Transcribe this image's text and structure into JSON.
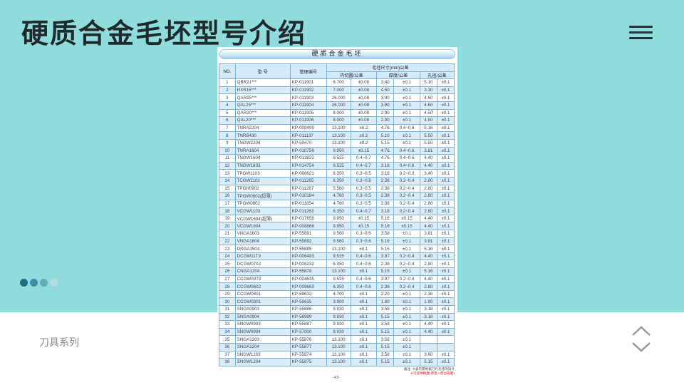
{
  "title": "硬质合金毛坯型号介绍",
  "footer_label": "刀具系列",
  "dot_colors": [
    "#1b6f86",
    "#3f8ea0",
    "#6aaab5",
    "#b3dcdf"
  ],
  "document": {
    "banner": "硬质合金毛坯",
    "headers": {
      "no": "NO.",
      "model": "型 号",
      "code": "管理编号",
      "size": "毛坯尺寸(mm)公差",
      "inscribed": "内切圆/公差",
      "thickness": "厚度/公差",
      "hole": "孔径/公差"
    },
    "rows": [
      [
        "1",
        "QBR21***",
        "KP-011901",
        "8.700",
        "±0.08",
        "3.40",
        "±0.1",
        "5.10",
        "±0.1"
      ],
      [
        "2",
        "HXR15***",
        "KP-011902",
        "7.000",
        "±0.08",
        "4.50",
        "±0.1",
        "3.30",
        "±0.1"
      ],
      [
        "3",
        "QAR25***",
        "KP-011903",
        "26.000",
        "±0.08",
        "3.90",
        "±0.1",
        "4.60",
        "±0.1"
      ],
      [
        "4",
        "QAL25***",
        "KP-011904",
        "26.000",
        "±0.08",
        "3.90",
        "±0.1",
        "4.60",
        "±0.1"
      ],
      [
        "5",
        "QAR20***",
        "KP-011905",
        "8.000",
        "±0.08",
        "2.90",
        "±0.1",
        "4.50",
        "±0.1"
      ],
      [
        "6",
        "QAL20***",
        "KP-011906",
        "8.000",
        "±0.08",
        "2.90",
        "±0.1",
        "4.50",
        "±0.1"
      ],
      [
        "7",
        "TNRA2204",
        "KP-008499",
        "13.100",
        "±0.2",
        "4.76",
        "0.4~0.6",
        "5.16",
        "±0.1"
      ],
      [
        "8",
        "TNRB430",
        "KP-011137",
        "13.100",
        "±0.2",
        "5.10",
        "±0.1",
        "5.50",
        "±0.1"
      ],
      [
        "9",
        "TNGW2204",
        "KP-59470",
        "13.100",
        "±0.2",
        "5.15",
        "±0.1",
        "5.50",
        "±0.1"
      ],
      [
        "10",
        "TNRA1604",
        "KP-010756",
        "9.950",
        "±0.15",
        "4.76",
        "0.4~0.6",
        "3.81",
        "±0.1"
      ],
      [
        "11",
        "TNGW1604",
        "KP-013822",
        "9.525",
        "0.4~0.7",
        "4.76",
        "0.4~0.6",
        "4.40",
        "±0.1"
      ],
      [
        "12",
        "TNGW1603",
        "KP-014754",
        "9.525",
        "0.4~0.7",
        "3.18",
        "0.4~0.6",
        "4.40",
        "±0.1"
      ],
      [
        "13",
        "TPGW1103",
        "KP-006621",
        "6.350",
        "0.3~0.5",
        "3.18",
        "0.2~0.3",
        "3.40",
        "±0.1"
      ],
      [
        "14",
        "TCGW1102",
        "KP-011265",
        "6.350",
        "0.3~0.6",
        "2.38",
        "0.2~0.4",
        "2.80",
        "±0.1"
      ],
      [
        "15",
        "TPGH0902",
        "KP-011267",
        "5.560",
        "0.3~0.5",
        "2.38",
        "0.2~0.4",
        "2.80",
        "±0.1"
      ],
      [
        "16",
        "TPGW0802(超薄)",
        "KP-010184",
        "4.760",
        "0.3~0.5",
        "2.38",
        "0.2~0.4",
        "2.80",
        "±0.1"
      ],
      [
        "17",
        "TPGW0802",
        "KP-011854",
        "4.760",
        "0.3~0.5",
        "2.38",
        "0.2~0.4",
        "2.80",
        "±0.1"
      ],
      [
        "18",
        "VCGW1103",
        "KP-011263",
        "6.350",
        "0.4~0.7",
        "3.18",
        "0.2~0.4",
        "2.80",
        "±0.1"
      ],
      [
        "19",
        "VCGW1604(超薄)",
        "KP-017658",
        "9.950",
        "±0.15",
        "5.16",
        "±0.15",
        "4.40",
        "±0.1"
      ],
      [
        "20",
        "VCGW1604",
        "KP-008866",
        "9.950",
        "±0.15",
        "5.16",
        "±0.15",
        "4.40",
        "±0.1"
      ],
      [
        "21",
        "VNGA1603",
        "KP-55891",
        "9.560",
        "0.3~0.6",
        "3.58",
        "±0.1",
        "3.81",
        "±0.1"
      ],
      [
        "22",
        "VNGA1604",
        "KP-55892",
        "9.560",
        "0.3~0.6",
        "5.16",
        "±0.1",
        "3.81",
        "±0.1"
      ],
      [
        "23",
        "DNGA1504",
        "KP-55885",
        "13.100",
        "±0.1",
        "5.15",
        "±0.1",
        "5.16",
        "±0.1"
      ],
      [
        "24",
        "DCGW11T3",
        "KP-006483",
        "9.525",
        "0.4~0.6",
        "3.97",
        "0.2~0.4",
        "4.40",
        "±0.1"
      ],
      [
        "25",
        "DCGW0702",
        "KP-008232",
        "6.350",
        "0.4~0.6",
        "2.38",
        "0.2~0.4",
        "2.80",
        "±0.1"
      ],
      [
        "26",
        "CNGA1204",
        "KP-55878",
        "13.100",
        "±0.1",
        "5.15",
        "±0.1",
        "5.16",
        "±0.1"
      ],
      [
        "27",
        "CCGW09T3",
        "KP-004635",
        "9.525",
        "0.4~0.6",
        "3.97",
        "0.2~0.4",
        "4.40",
        "±0.1"
      ],
      [
        "28",
        "CCGW0602",
        "KP-009663",
        "6.350",
        "0.4~0.6",
        "2.38",
        "0.2~0.4",
        "2.80",
        "±0.1"
      ],
      [
        "29",
        "CCGW0401",
        "KP-59632",
        "4.700",
        "±0.1",
        "2.20",
        "±0.1",
        "2.30",
        "±0.1"
      ],
      [
        "30",
        "CCGW0301",
        "KP-59635",
        "3.900",
        "±0.1",
        "1.80",
        "±0.1",
        "1.90",
        "±0.1"
      ],
      [
        "31",
        "SNGA0903",
        "KP-55886",
        "9.930",
        "±0.1",
        "3.58",
        "±0.1",
        "3.18",
        "±0.1"
      ],
      [
        "32",
        "SNGA0904",
        "KP-56999",
        "9.930",
        "±0.1",
        "5.15",
        "±0.1",
        "3.18",
        "±0.1"
      ],
      [
        "33",
        "SNGW0903",
        "KP-55887",
        "9.930",
        "±0.1",
        "3.58",
        "±0.1",
        "4.40",
        "±0.1"
      ],
      [
        "34",
        "SNGW0904",
        "KP-57000",
        "9.930",
        "±0.1",
        "5.15",
        "±0.1",
        "4.40",
        "±0.1"
      ],
      [
        "35",
        "SNGA1203",
        "KP-55876",
        "13.100",
        "±0.1",
        "3.58",
        "±0.1",
        "",
        ""
      ],
      [
        "36",
        "SNGA1204",
        "KP-55877",
        "13.100",
        "±0.1",
        "5.15",
        "±0.1",
        "",
        ""
      ],
      [
        "37",
        "SNGW1203",
        "KP-55874",
        "13.100",
        "±0.1",
        "3.58",
        "±0.1",
        "3.60",
        "±0.1"
      ],
      [
        "38",
        "SNGW1204",
        "KP-55875",
        "13.100",
        "±0.1",
        "5.15",
        "±0.1",
        "5.15",
        "±0.1"
      ]
    ],
    "note_1": "备注: ※表示需根据刀片毛坯的设计",
    "note_2": "※可提供精磨(厚度+周边研磨)",
    "page_number": "-43-"
  }
}
